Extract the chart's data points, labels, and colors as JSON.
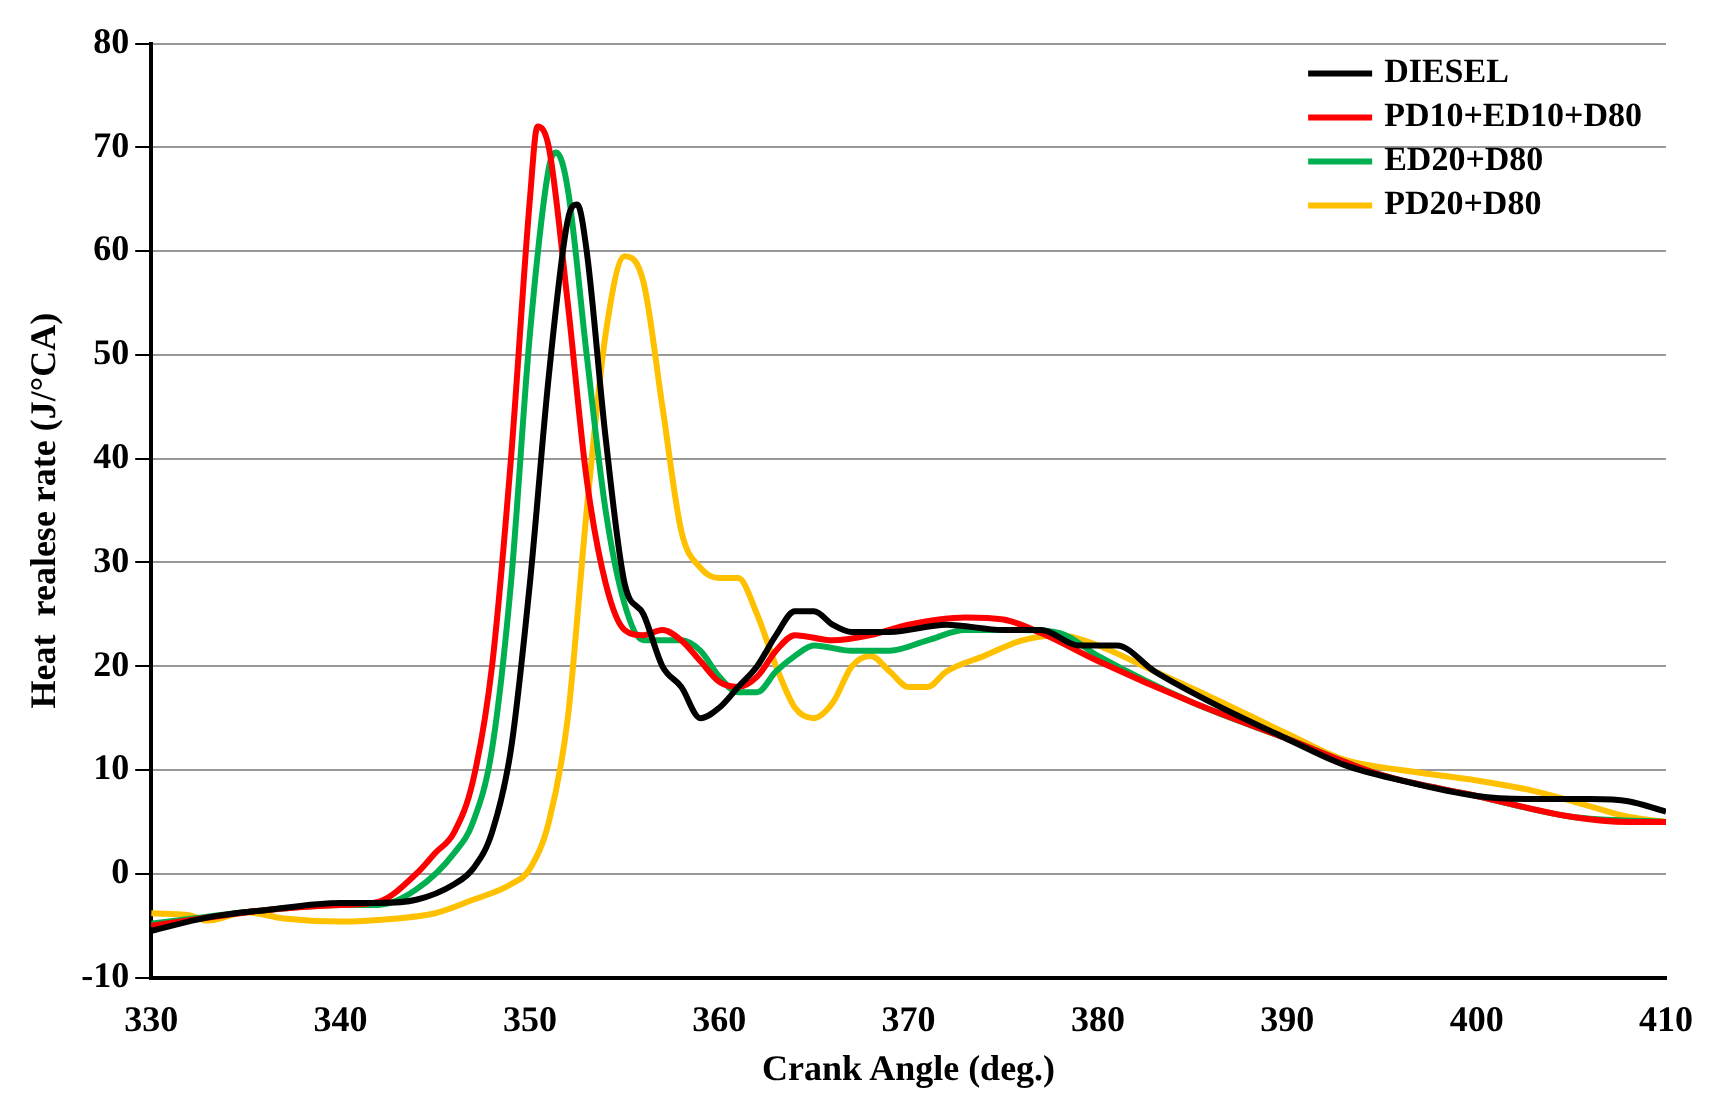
{
  "chart_data": {
    "type": "line",
    "xlabel": "Crank Angle (deg.)",
    "ylabel": "Heat  realese rate (J/°CA)",
    "xlim": [
      330,
      410
    ],
    "xticks": [
      330,
      340,
      350,
      360,
      370,
      380,
      390,
      400,
      410
    ],
    "ylim": [
      -10,
      80
    ],
    "yticks": [
      -10,
      0,
      10,
      20,
      30,
      40,
      50,
      60,
      70,
      80
    ],
    "grid": "y",
    "legend": "top right",
    "marker": "none",
    "line_style": "solid",
    "series": [
      {
        "name": "DIESEL",
        "color": "#000000",
        "x": [
          330,
          333,
          336,
          340,
          342,
          344,
          346,
          347,
          348,
          349,
          350,
          351,
          352,
          352.5,
          353,
          354,
          355,
          356,
          357,
          358,
          359,
          360,
          361,
          362,
          363,
          364,
          365,
          366,
          367,
          369,
          372,
          375,
          377,
          379,
          381,
          383,
          386,
          390,
          393,
          396,
          400,
          403,
          406,
          408,
          410
        ],
        "values": [
          -5.5,
          -4.2,
          -3.5,
          -2.8,
          -2.8,
          -2.5,
          -1,
          0.5,
          4,
          12,
          28,
          48,
          63,
          64.5,
          60,
          42,
          28,
          25,
          20,
          18,
          15,
          16,
          18,
          20,
          23,
          25.3,
          25.3,
          24,
          23.3,
          23.3,
          24,
          23.5,
          23.5,
          22,
          22,
          19.5,
          16.5,
          13,
          10.5,
          9,
          7.5,
          7.2,
          7.2,
          7,
          6
        ]
      },
      {
        "name": "PD10+ED10+D80",
        "color": "#ff0000",
        "x": [
          330,
          336,
          340,
          342,
          344,
          345,
          346,
          347,
          348,
          349,
          350,
          350.4,
          351,
          352,
          353,
          354,
          355,
          356,
          357,
          358,
          359,
          360,
          361,
          362,
          363,
          364,
          366,
          368,
          370,
          373,
          375,
          377,
          380,
          385,
          390,
          395,
          400,
          405,
          408,
          410
        ],
        "values": [
          -5,
          -3.5,
          -3,
          -2.7,
          0,
          2,
          4,
          9,
          20,
          40,
          65,
          72,
          70,
          55,
          38,
          28,
          23.5,
          23,
          23.5,
          22.5,
          20.5,
          18.5,
          18,
          19,
          21.5,
          23,
          22.5,
          23,
          24,
          24.7,
          24.5,
          23.2,
          20.5,
          16.5,
          13,
          9.5,
          7.5,
          5.5,
          5,
          5
        ]
      },
      {
        "name": "ED20+D80",
        "color": "#00b050",
        "x": [
          330,
          336,
          340,
          342,
          344,
          346,
          347,
          348,
          349,
          350,
          351,
          351.4,
          352,
          353,
          354,
          355,
          356,
          357,
          358,
          359,
          360,
          361,
          362,
          363,
          364,
          365,
          367,
          369,
          371,
          373,
          376,
          378,
          380,
          385,
          390,
          395,
          400,
          405,
          410
        ],
        "values": [
          -4.8,
          -3.5,
          -3,
          -3,
          -1.5,
          2,
          5,
          12,
          28,
          52,
          68,
          69.5,
          66,
          50,
          35,
          26,
          22.5,
          22.5,
          22.5,
          21.5,
          19,
          17.5,
          17.5,
          19.5,
          21,
          22,
          21.5,
          21.5,
          22.5,
          23.5,
          23.5,
          23.2,
          21,
          16.5,
          13,
          9.5,
          7.5,
          5.5,
          5
        ]
      },
      {
        "name": "PD20+D80",
        "color": "#ffc000",
        "x": [
          330,
          332,
          333,
          335,
          337,
          340,
          343,
          345,
          347,
          349,
          350,
          351,
          352,
          353,
          354,
          355,
          356,
          357,
          358,
          359,
          360,
          361,
          362,
          363,
          364,
          365,
          366,
          367,
          368,
          369,
          370,
          371,
          372,
          374,
          376,
          378,
          380,
          383,
          386,
          390,
          393,
          396,
          400,
          403,
          406,
          408,
          410
        ],
        "values": [
          -3.8,
          -4,
          -4.5,
          -3.7,
          -4.3,
          -4.6,
          -4.3,
          -3.8,
          -2.5,
          -1,
          0.5,
          5,
          15,
          35,
          52,
          59.5,
          57,
          45,
          33,
          29.5,
          28.5,
          28.5,
          25,
          20,
          16,
          15,
          16.5,
          20,
          21,
          19.5,
          18,
          18,
          19.5,
          21,
          22.5,
          23,
          22,
          19.5,
          17,
          13.5,
          11,
          10,
          9,
          8,
          6.5,
          5.5,
          5
        ]
      }
    ]
  }
}
